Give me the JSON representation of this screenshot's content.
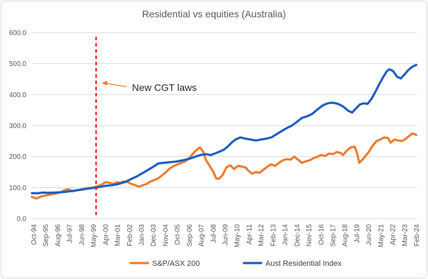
{
  "chart_data": {
    "type": "line",
    "title": "Residential vs equities (Australia)",
    "xlabel": "",
    "ylabel": "",
    "ylim": [
      0,
      600
    ],
    "yticks": [
      "0.0",
      "100.0",
      "200.0",
      "300.0",
      "400.0",
      "500.0",
      "600.0"
    ],
    "x_tick_labels": [
      "Oct-94",
      "Sep-95",
      "Aug-96",
      "Jul-97",
      "Jun-98",
      "May-99",
      "Apr-00",
      "Mar-01",
      "Feb-02",
      "Jan-03",
      "Dec-03",
      "Nov-04",
      "Oct-05",
      "Sep-06",
      "Aug-07",
      "Jul-08",
      "Jun-09",
      "May-10",
      "Apr-11",
      "Mar-12",
      "Feb-13",
      "Jan-14",
      "Dec-14",
      "Nov-15",
      "Oct-16",
      "Sep-17",
      "Aug-18",
      "Jul-19",
      "Jun-20",
      "May-21",
      "Apr-22",
      "Mar-23",
      "Feb-24"
    ],
    "grid": "horizontal",
    "legend_position": "bottom",
    "annotation": {
      "label": "New CGT laws",
      "x": 1999.75
    },
    "series": [
      {
        "name": "S&P/ASX 200",
        "color": "#ed7d31",
        "points": [
          [
            1994.75,
            70
          ],
          [
            1995.1,
            65
          ],
          [
            1995.5,
            72
          ],
          [
            1996.0,
            76
          ],
          [
            1996.5,
            80
          ],
          [
            1997.0,
            85
          ],
          [
            1997.3,
            92
          ],
          [
            1997.6,
            95
          ],
          [
            1997.9,
            88
          ],
          [
            1998.3,
            92
          ],
          [
            1998.7,
            95
          ],
          [
            1999.0,
            98
          ],
          [
            1999.5,
            100
          ],
          [
            1999.9,
            105
          ],
          [
            2000.2,
            110
          ],
          [
            2000.5,
            118
          ],
          [
            2000.8,
            115
          ],
          [
            2001.1,
            112
          ],
          [
            2001.4,
            118
          ],
          [
            2001.6,
            115
          ],
          [
            2001.9,
            120
          ],
          [
            2002.2,
            118
          ],
          [
            2002.5,
            112
          ],
          [
            2002.8,
            108
          ],
          [
            2003.1,
            103
          ],
          [
            2003.4,
            108
          ],
          [
            2003.7,
            112
          ],
          [
            2004.0,
            120
          ],
          [
            2004.3,
            125
          ],
          [
            2004.6,
            130
          ],
          [
            2004.9,
            140
          ],
          [
            2005.2,
            150
          ],
          [
            2005.5,
            162
          ],
          [
            2005.8,
            170
          ],
          [
            2006.1,
            175
          ],
          [
            2006.4,
            180
          ],
          [
            2006.7,
            185
          ],
          [
            2007.0,
            195
          ],
          [
            2007.3,
            210
          ],
          [
            2007.6,
            222
          ],
          [
            2007.85,
            230
          ],
          [
            2008.1,
            215
          ],
          [
            2008.3,
            190
          ],
          [
            2008.6,
            170
          ],
          [
            2008.9,
            150
          ],
          [
            2009.1,
            130
          ],
          [
            2009.3,
            128
          ],
          [
            2009.6,
            140
          ],
          [
            2009.9,
            165
          ],
          [
            2010.2,
            172
          ],
          [
            2010.5,
            160
          ],
          [
            2010.8,
            170
          ],
          [
            2011.1,
            168
          ],
          [
            2011.4,
            165
          ],
          [
            2011.6,
            155
          ],
          [
            2011.9,
            145
          ],
          [
            2012.2,
            150
          ],
          [
            2012.5,
            148
          ],
          [
            2012.8,
            158
          ],
          [
            2013.1,
            168
          ],
          [
            2013.4,
            175
          ],
          [
            2013.7,
            170
          ],
          [
            2014.0,
            180
          ],
          [
            2014.3,
            188
          ],
          [
            2014.6,
            192
          ],
          [
            2014.9,
            190
          ],
          [
            2015.2,
            200
          ],
          [
            2015.5,
            190
          ],
          [
            2015.8,
            180
          ],
          [
            2016.1,
            185
          ],
          [
            2016.4,
            188
          ],
          [
            2016.7,
            195
          ],
          [
            2017.0,
            200
          ],
          [
            2017.3,
            205
          ],
          [
            2017.6,
            202
          ],
          [
            2017.9,
            210
          ],
          [
            2018.2,
            208
          ],
          [
            2018.5,
            215
          ],
          [
            2018.8,
            212
          ],
          [
            2019.0,
            205
          ],
          [
            2019.3,
            220
          ],
          [
            2019.6,
            230
          ],
          [
            2019.9,
            232
          ],
          [
            2020.1,
            210
          ],
          [
            2020.25,
            180
          ],
          [
            2020.5,
            190
          ],
          [
            2020.8,
            205
          ],
          [
            2021.0,
            215
          ],
          [
            2021.3,
            235
          ],
          [
            2021.6,
            250
          ],
          [
            2021.9,
            255
          ],
          [
            2022.2,
            262
          ],
          [
            2022.5,
            260
          ],
          [
            2022.7,
            245
          ],
          [
            2023.0,
            255
          ],
          [
            2023.3,
            252
          ],
          [
            2023.6,
            250
          ],
          [
            2023.9,
            258
          ],
          [
            2024.1,
            265
          ],
          [
            2024.4,
            275
          ],
          [
            2024.7,
            270
          ]
        ]
      },
      {
        "name": "Aust Residential Index",
        "color": "#1f5fbf",
        "points": [
          [
            1994.75,
            82
          ],
          [
            1995.2,
            82
          ],
          [
            1995.6,
            84
          ],
          [
            1996.0,
            83
          ],
          [
            1996.5,
            84
          ],
          [
            1997.0,
            85
          ],
          [
            1997.5,
            87
          ],
          [
            1998.0,
            90
          ],
          [
            1998.5,
            93
          ],
          [
            1999.0,
            96
          ],
          [
            1999.5,
            99
          ],
          [
            2000.0,
            102
          ],
          [
            2000.5,
            106
          ],
          [
            2001.0,
            108
          ],
          [
            2001.5,
            112
          ],
          [
            2002.0,
            118
          ],
          [
            2002.5,
            128
          ],
          [
            2003.0,
            138
          ],
          [
            2003.5,
            150
          ],
          [
            2004.0,
            162
          ],
          [
            2004.3,
            170
          ],
          [
            2004.6,
            178
          ],
          [
            2005.0,
            180
          ],
          [
            2005.5,
            182
          ],
          [
            2006.0,
            184
          ],
          [
            2006.5,
            188
          ],
          [
            2007.0,
            193
          ],
          [
            2007.5,
            200
          ],
          [
            2007.85,
            205
          ],
          [
            2008.3,
            208
          ],
          [
            2008.7,
            205
          ],
          [
            2009.0,
            210
          ],
          [
            2009.3,
            215
          ],
          [
            2009.7,
            222
          ],
          [
            2010.0,
            232
          ],
          [
            2010.3,
            245
          ],
          [
            2010.6,
            255
          ],
          [
            2011.0,
            262
          ],
          [
            2011.4,
            258
          ],
          [
            2011.8,
            255
          ],
          [
            2012.2,
            252
          ],
          [
            2012.6,
            255
          ],
          [
            2013.0,
            258
          ],
          [
            2013.4,
            262
          ],
          [
            2013.8,
            272
          ],
          [
            2014.2,
            282
          ],
          [
            2014.6,
            292
          ],
          [
            2015.0,
            300
          ],
          [
            2015.4,
            312
          ],
          [
            2015.8,
            325
          ],
          [
            2016.2,
            330
          ],
          [
            2016.6,
            338
          ],
          [
            2017.0,
            352
          ],
          [
            2017.4,
            365
          ],
          [
            2017.8,
            372
          ],
          [
            2018.2,
            374
          ],
          [
            2018.6,
            370
          ],
          [
            2019.0,
            362
          ],
          [
            2019.4,
            348
          ],
          [
            2019.7,
            342
          ],
          [
            2020.0,
            355
          ],
          [
            2020.3,
            368
          ],
          [
            2020.6,
            372
          ],
          [
            2020.9,
            370
          ],
          [
            2021.2,
            385
          ],
          [
            2021.5,
            408
          ],
          [
            2021.8,
            432
          ],
          [
            2022.1,
            455
          ],
          [
            2022.4,
            475
          ],
          [
            2022.6,
            482
          ],
          [
            2022.9,
            476
          ],
          [
            2023.2,
            458
          ],
          [
            2023.5,
            452
          ],
          [
            2023.8,
            466
          ],
          [
            2024.1,
            480
          ],
          [
            2024.4,
            490
          ],
          [
            2024.7,
            496
          ]
        ]
      }
    ]
  }
}
